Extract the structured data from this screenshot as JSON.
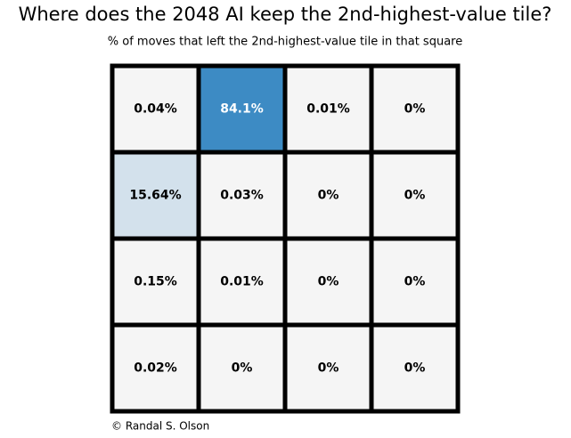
{
  "chart_data": {
    "type": "heatmap",
    "title": "Where does the 2048 AI keep the 2nd-highest-value tile?",
    "subtitle": "% of moves that left the 2nd-highest-value tile in that square",
    "credit": "© Randal S. Olson",
    "values": [
      [
        0.04,
        84.1,
        0.01,
        0
      ],
      [
        15.64,
        0.03,
        0,
        0
      ],
      [
        0.15,
        0.01,
        0,
        0
      ],
      [
        0.02,
        0,
        0,
        0
      ]
    ],
    "value_labels": [
      [
        "0.04%",
        "84.1%",
        "0.01%",
        "0%"
      ],
      [
        "15.64%",
        "0.03%",
        "0%",
        "0%"
      ],
      [
        "0.15%",
        "0.01%",
        "0%",
        "0%"
      ],
      [
        "0.02%",
        "0%",
        "0%",
        "0%"
      ]
    ],
    "colors": [
      "#f5f5f5",
      "#3d8bc4"
    ]
  }
}
